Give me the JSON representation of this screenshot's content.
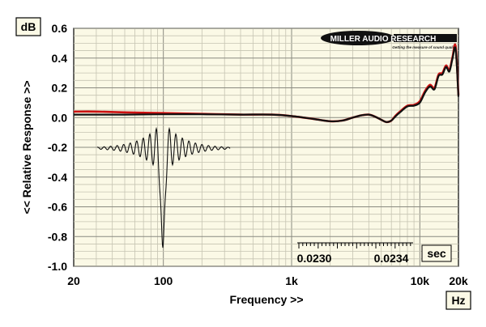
{
  "chart_data": {
    "type": "line",
    "title": "",
    "xlabel": "Frequency >>",
    "ylabel": "<< Relative Response >>",
    "x_scale": "log",
    "xlim": [
      20,
      20000
    ],
    "ylim": [
      -1.0,
      0.6
    ],
    "grid": true,
    "y_unit": "dB",
    "x_unit": "Hz",
    "x_ticks": [
      {
        "value": 20,
        "label": "20"
      },
      {
        "value": 100,
        "label": "100"
      },
      {
        "value": 1000,
        "label": "1k"
      },
      {
        "value": 10000,
        "label": "10k"
      },
      {
        "value": 20000,
        "label": "20k"
      }
    ],
    "y_ticks": [
      {
        "value": 0.6,
        "label": "0.6"
      },
      {
        "value": 0.4,
        "label": "0.4"
      },
      {
        "value": 0.2,
        "label": "0.2"
      },
      {
        "value": 0.0,
        "label": "0.0"
      },
      {
        "value": -0.2,
        "label": "-0.2"
      },
      {
        "value": -0.4,
        "label": "-0.4"
      },
      {
        "value": -0.6,
        "label": "-0.6"
      },
      {
        "value": -0.8,
        "label": "-0.8"
      },
      {
        "value": -1.0,
        "label": "-1.0"
      }
    ],
    "series": [
      {
        "color": "#cc1111",
        "x": [
          20,
          30,
          50,
          100,
          200,
          400,
          700,
          1000,
          1500,
          2000,
          2500,
          3000,
          3500,
          4000,
          4500,
          5000,
          5500,
          6000,
          6500,
          7000,
          8000,
          9000,
          10000,
          11000,
          12000,
          13000,
          14000,
          15000,
          16000,
          17000,
          18000,
          19000,
          20000
        ],
        "y": [
          0.04,
          0.04,
          0.035,
          0.03,
          0.025,
          0.02,
          0.02,
          0.01,
          -0.01,
          -0.025,
          -0.02,
          0.0,
          0.015,
          0.02,
          0.005,
          -0.015,
          -0.03,
          -0.02,
          0.015,
          0.04,
          0.08,
          0.085,
          0.11,
          0.18,
          0.22,
          0.2,
          0.29,
          0.3,
          0.35,
          0.32,
          0.41,
          0.48,
          0.15
        ]
      },
      {
        "color": "#111111",
        "x": [
          20,
          30,
          50,
          100,
          200,
          400,
          700,
          1000,
          1500,
          2000,
          2500,
          3000,
          3500,
          4000,
          4500,
          5000,
          5500,
          6000,
          6500,
          7000,
          8000,
          9000,
          10000,
          11000,
          12000,
          13000,
          14000,
          15000,
          16000,
          17000,
          18000,
          19000,
          20000
        ],
        "y": [
          0.02,
          0.02,
          0.02,
          0.022,
          0.022,
          0.02,
          0.02,
          0.01,
          -0.01,
          -0.025,
          -0.02,
          0.0,
          0.015,
          0.02,
          0.005,
          -0.015,
          -0.03,
          -0.02,
          0.01,
          0.035,
          0.075,
          0.08,
          0.1,
          0.17,
          0.21,
          0.19,
          0.28,
          0.29,
          0.34,
          0.31,
          0.4,
          0.46,
          0.14
        ]
      }
    ],
    "inset": {
      "type": "impulse",
      "x_ticks": [
        "0.0230",
        "0.0234"
      ],
      "unit": "sec"
    }
  },
  "logo": {
    "brand": "MILLER AUDIO RESEARCH",
    "tagline": "Getting the measure of sound quality"
  }
}
